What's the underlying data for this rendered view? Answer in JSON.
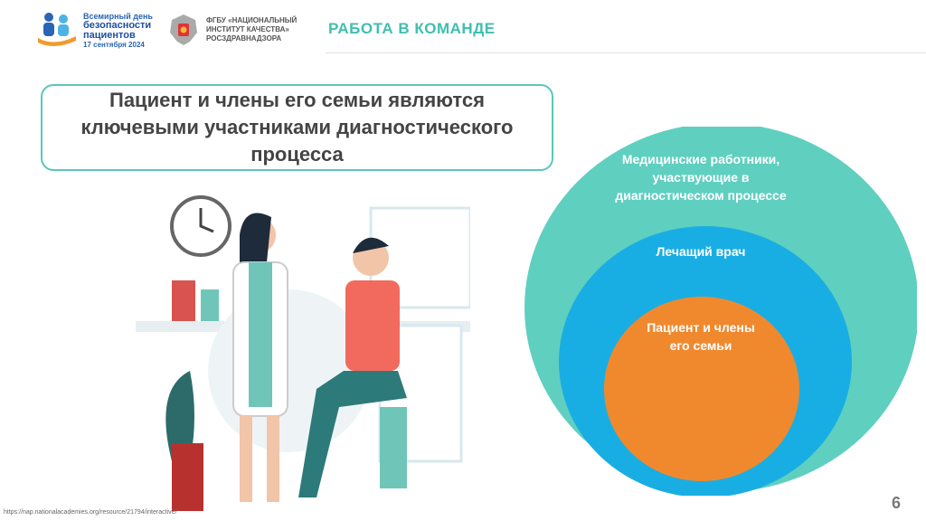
{
  "header": {
    "logo1": {
      "line1": "Всемирный день",
      "line2": "безопасности",
      "line3": "пациентов",
      "date": "17 сентября 2024"
    },
    "logo2": {
      "line1": "ФГБУ «НАЦИОНАЛЬНЫЙ",
      "line2": "ИНСТИТУТ КАЧЕСТВА»",
      "line3": "РОСЗДРАВНАДЗОРА"
    },
    "title": "РАБОТА В КОМАНДЕ"
  },
  "main": {
    "heading": "Пациент и  члены его семьи являются ключевыми участниками диагностического процесса",
    "circles": [
      {
        "label": "Медицинские работники, участвующие в диагностическом процессе",
        "color": "#5fcfc0"
      },
      {
        "label": "Лечащий врач",
        "color": "#19aee3"
      },
      {
        "label": "Пациент и члены его семьи",
        "color": "#f0892e"
      }
    ]
  },
  "footer": {
    "source": "https://nap.nationalacademies.org/resource/21794/interactive/",
    "page": "6"
  }
}
